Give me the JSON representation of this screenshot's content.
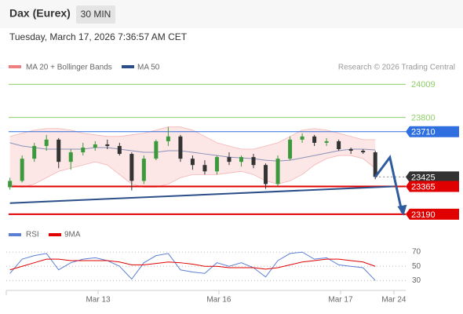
{
  "chart_data": {
    "type": "candlestick",
    "title": "Dax (Eurex)",
    "interval": "30 MIN",
    "timestamp": "Tuesday, March 17, 2026 7:36:57 AM CET",
    "legend": [
      {
        "name": "MA 20 + Bollinger Bands",
        "color": "#f08080"
      },
      {
        "name": "MA 50",
        "color": "#2c4f8a"
      }
    ],
    "copyright": "Research © 2026 Trading Central",
    "up_color": "#3c9a3c",
    "down_color": "#333333",
    "x": [
      0,
      1,
      2,
      3,
      4,
      5,
      6,
      7,
      8,
      9,
      10,
      11,
      12,
      13,
      14,
      15,
      16,
      17,
      18,
      19,
      20,
      21,
      22,
      23,
      24,
      25,
      26,
      27,
      28,
      29,
      30
    ],
    "open": [
      23360,
      23400,
      23540,
      23620,
      23660,
      23520,
      23580,
      23610,
      23630,
      23620,
      23570,
      23400,
      23540,
      23650,
      23680,
      23540,
      23500,
      23460,
      23550,
      23520,
      23550,
      23500,
      23380,
      23540,
      23660,
      23680,
      23640,
      23650,
      23600,
      23590,
      23580
    ],
    "high": [
      23420,
      23560,
      23640,
      23690,
      23670,
      23600,
      23640,
      23650,
      23660,
      23640,
      23580,
      23560,
      23660,
      23740,
      23690,
      23560,
      23530,
      23560,
      23580,
      23560,
      23570,
      23510,
      23560,
      23680,
      23700,
      23690,
      23670,
      23660,
      23610,
      23600,
      23590
    ],
    "low": [
      23345,
      23390,
      23520,
      23590,
      23480,
      23470,
      23560,
      23590,
      23600,
      23560,
      23340,
      23380,
      23530,
      23620,
      23520,
      23470,
      23440,
      23440,
      23500,
      23490,
      23480,
      23350,
      23370,
      23530,
      23640,
      23620,
      23620,
      23590,
      23570,
      23570,
      23410
    ],
    "close": [
      23400,
      23540,
      23620,
      23660,
      23520,
      23580,
      23610,
      23630,
      23620,
      23570,
      23400,
      23540,
      23650,
      23680,
      23540,
      23500,
      23460,
      23550,
      23520,
      23550,
      23500,
      23380,
      23540,
      23660,
      23680,
      23640,
      23650,
      23600,
      23590,
      23580,
      23425
    ],
    "bb_upper": [
      23680,
      23700,
      23720,
      23730,
      23730,
      23720,
      23700,
      23690,
      23680,
      23680,
      23690,
      23700,
      23720,
      23740,
      23740,
      23720,
      23680,
      23640,
      23620,
      23600,
      23600,
      23620,
      23640,
      23680,
      23720,
      23730,
      23720,
      23700,
      23680,
      23660,
      23660
    ],
    "bb_lower": [
      23380,
      23360,
      23380,
      23420,
      23460,
      23480,
      23500,
      23520,
      23500,
      23440,
      23380,
      23360,
      23360,
      23380,
      23420,
      23440,
      23440,
      23440,
      23450,
      23460,
      23440,
      23400,
      23380,
      23400,
      23440,
      23500,
      23540,
      23560,
      23560,
      23540,
      23480
    ],
    "ma50": [
      23640,
      23620,
      23610,
      23600,
      23600,
      23600,
      23600,
      23610,
      23610,
      23600,
      23590,
      23580,
      23580,
      23590,
      23590,
      23580,
      23570,
      23560,
      23550,
      23545,
      23540,
      23530,
      23525,
      23530,
      23545,
      23560,
      23575,
      23590,
      23600,
      23600,
      23595
    ],
    "trendline": {
      "x": [
        0,
        31.5
      ],
      "values": [
        23260,
        23365
      ],
      "color": "#2c4f8a"
    },
    "forecast": {
      "x": [
        30,
        31.2,
        32.2
      ],
      "values": [
        23425,
        23548,
        23200
      ],
      "color": "#2e5c9e"
    },
    "levels": [
      {
        "value": 24009,
        "color": "#8fcf6a",
        "box": false
      },
      {
        "value": 23800,
        "color": "#8fcf6a",
        "box": false
      },
      {
        "value": 23710,
        "color": "#2f6fe0",
        "box": true
      },
      {
        "value": 23425,
        "color": "#333333",
        "box": true
      },
      {
        "value": 23365,
        "color": "#e00000",
        "box": true
      },
      {
        "value": 23190,
        "color": "#e00000",
        "box": true
      }
    ],
    "ylim": [
      23130,
      24070
    ],
    "xlim": [
      -0.3,
      32.5
    ],
    "xticks": [
      {
        "value": 7.24,
        "label": "Mar 13"
      },
      {
        "value": 17.16,
        "label": "Mar 16"
      },
      {
        "value": 27.15,
        "label": "Mar 17"
      },
      {
        "value": 31.53,
        "label": "Mar 24"
      }
    ],
    "rsi": {
      "legend": [
        {
          "name": "RSI",
          "color": "#5b7fd6"
        },
        {
          "name": "9MA",
          "color": "#e00000"
        }
      ],
      "values": [
        40,
        60,
        65,
        68,
        45,
        55,
        60,
        62,
        58,
        50,
        32,
        55,
        65,
        68,
        45,
        42,
        40,
        55,
        50,
        55,
        48,
        35,
        58,
        68,
        70,
        60,
        62,
        52,
        50,
        48,
        30
      ],
      "ma": [
        45,
        50,
        55,
        60,
        60,
        58,
        58,
        58,
        58,
        56,
        52,
        52,
        54,
        56,
        55,
        53,
        50,
        50,
        48,
        48,
        48,
        46,
        48,
        52,
        56,
        58,
        60,
        60,
        58,
        56,
        50
      ],
      "ylim": [
        16,
        90
      ],
      "yticks": [
        70,
        50,
        30
      ]
    }
  }
}
